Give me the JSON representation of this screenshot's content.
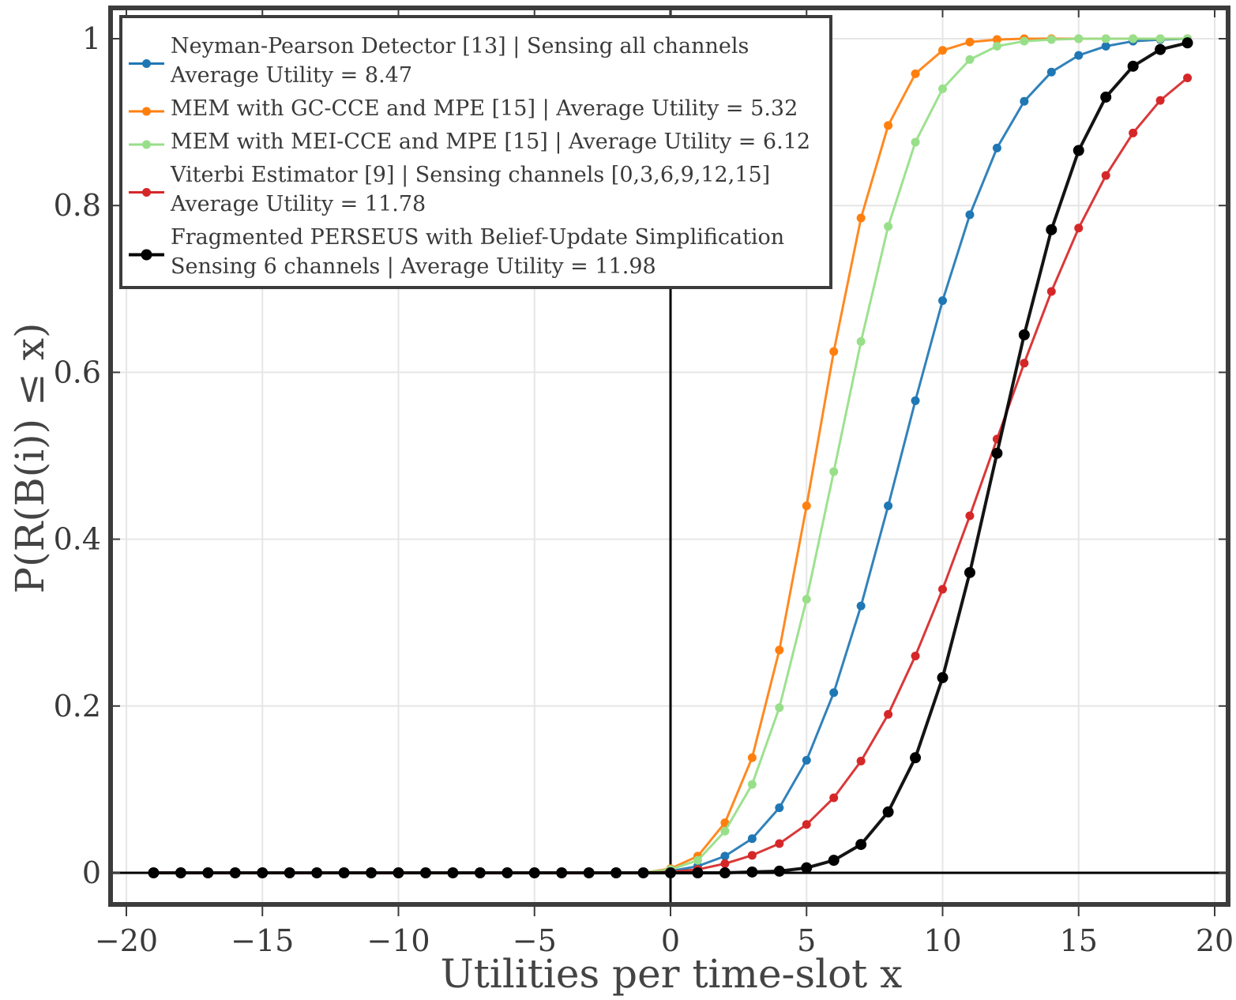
{
  "chart_data": {
    "type": "line",
    "title": "",
    "xlabel": "Utilities per time-slot x",
    "ylabel": "P(R(B(i)) ≤ x)",
    "xlim": [
      -20,
      20
    ],
    "ylim": [
      0,
      1
    ],
    "xticks": [
      -20,
      -15,
      -10,
      -5,
      0,
      5,
      10,
      15,
      20
    ],
    "xtick_labels": [
      "−20",
      "−15",
      "−10",
      "−5",
      "0",
      "5",
      "10",
      "15",
      "20"
    ],
    "yticks": [
      0,
      0.2,
      0.4,
      0.6,
      0.8,
      1
    ],
    "ytick_labels": [
      "0",
      "0.2",
      "0.4",
      "0.6",
      "0.8",
      "1"
    ],
    "grid": true,
    "legend_position": "top-left",
    "x": [
      -19,
      -18,
      -17,
      -16,
      -15,
      -14,
      -13,
      -12,
      -11,
      -10,
      -9,
      -8,
      -7,
      -6,
      -5,
      -4,
      -3,
      -2,
      -1,
      0,
      1,
      2,
      3,
      4,
      5,
      6,
      7,
      8,
      9,
      10,
      11,
      12,
      13,
      14,
      15,
      16,
      17,
      18,
      19
    ],
    "series": [
      {
        "name": "Neyman-Pearson Detector [13] | Sensing all channels",
        "name_line2": "Average Utility = 8.47",
        "color": "#1f77b4",
        "values": [
          0,
          0,
          0,
          0,
          0,
          0,
          0,
          0,
          0,
          0,
          0,
          0,
          0,
          0,
          0,
          0,
          0,
          0,
          0,
          0.002,
          0.008,
          0.02,
          0.041,
          0.078,
          0.135,
          0.216,
          0.32,
          0.44,
          0.566,
          0.686,
          0.789,
          0.869,
          0.925,
          0.96,
          0.98,
          0.991,
          0.997,
          0.999,
          1.0
        ]
      },
      {
        "name": "MEM with GC-CCE and MPE [15] | Average Utility = 5.32",
        "color": "#ff7f0e",
        "values": [
          0,
          0,
          0,
          0,
          0,
          0,
          0,
          0,
          0,
          0,
          0,
          0,
          0,
          0,
          0,
          0,
          0,
          0,
          0,
          0.005,
          0.02,
          0.06,
          0.138,
          0.267,
          0.44,
          0.625,
          0.785,
          0.896,
          0.958,
          0.986,
          0.996,
          0.999,
          1.0,
          1.0,
          1.0,
          1.0,
          1.0,
          1.0,
          1.0
        ]
      },
      {
        "name": "MEM with MEI-CCE and MPE [15] | Average Utility = 6.12",
        "color": "#98df8a",
        "values": [
          0,
          0,
          0,
          0,
          0,
          0,
          0,
          0,
          0,
          0,
          0,
          0,
          0,
          0,
          0,
          0,
          0,
          0,
          0,
          0.004,
          0.015,
          0.05,
          0.106,
          0.198,
          0.328,
          0.481,
          0.637,
          0.775,
          0.876,
          0.94,
          0.975,
          0.991,
          0.997,
          0.999,
          1.0,
          1.0,
          1.0,
          1.0,
          1.0
        ]
      },
      {
        "name": "Viterbi Estimator [9] | Sensing channels [0,3,6,9,12,15]",
        "name_line2": "Average Utility = 11.78",
        "color": "#d62728",
        "values": [
          0,
          0,
          0,
          0,
          0,
          0,
          0,
          0,
          0,
          0,
          0,
          0,
          0,
          0,
          0,
          0,
          0,
          0,
          0,
          0.001,
          0.004,
          0.011,
          0.021,
          0.035,
          0.058,
          0.09,
          0.134,
          0.19,
          0.26,
          0.34,
          0.428,
          0.52,
          0.611,
          0.697,
          0.773,
          0.836,
          0.887,
          0.926,
          0.953
        ]
      },
      {
        "name": "Fragmented PERSEUS with Belief-Update Simplification",
        "name_line2": "Sensing 6 channels | Average Utility = 11.98",
        "color": "#000000",
        "values": [
          0,
          0,
          0,
          0,
          0,
          0,
          0,
          0,
          0,
          0,
          0,
          0,
          0,
          0,
          0,
          0,
          0,
          0,
          0,
          0,
          0,
          0,
          0.001,
          0.002,
          0.006,
          0.015,
          0.034,
          0.073,
          0.138,
          0.234,
          0.36,
          0.503,
          0.645,
          0.771,
          0.866,
          0.93,
          0.967,
          0.987,
          0.995
        ]
      }
    ]
  }
}
